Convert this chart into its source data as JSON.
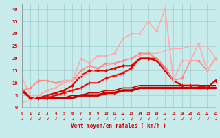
{
  "xlabel": "Vent moyen/en rafales ( km/h )",
  "x": [
    0,
    1,
    2,
    3,
    4,
    5,
    6,
    7,
    8,
    9,
    10,
    11,
    12,
    13,
    14,
    15,
    16,
    17,
    18,
    19,
    20,
    21,
    22,
    23
  ],
  "ylim": [
    0,
    42
  ],
  "xlim": [
    0,
    23
  ],
  "yticks": [
    0,
    5,
    10,
    15,
    20,
    25,
    30,
    35,
    40
  ],
  "bg_color": "#c8ecec",
  "lines": [
    {
      "y": [
        7,
        4,
        4,
        4,
        4,
        4,
        4,
        5,
        5,
        5,
        6,
        6,
        7,
        7,
        8,
        8,
        8,
        8,
        8,
        8,
        8,
        8,
        8,
        8
      ],
      "color": "#cc0000",
      "lw": 2.5,
      "marker": "s",
      "ms": 1.5
    },
    {
      "y": [
        7,
        4,
        4,
        4,
        4,
        4,
        5,
        5,
        6,
        6,
        7,
        7,
        8,
        8,
        9,
        9,
        9,
        9,
        9,
        9,
        9,
        9,
        9,
        9
      ],
      "color": "#bb0000",
      "lw": 1.2,
      "marker": null,
      "ms": 0
    },
    {
      "y": [
        7,
        4,
        4,
        4,
        5,
        6,
        7,
        8,
        10,
        10,
        12,
        13,
        14,
        16,
        20,
        20,
        20,
        16,
        11,
        9,
        9,
        9,
        8,
        11
      ],
      "color": "#ff0000",
      "lw": 1.5,
      "marker": "+",
      "ms": 4
    },
    {
      "y": [
        7,
        4,
        4,
        5,
        6,
        7,
        9,
        13,
        15,
        15,
        15,
        16,
        17,
        17,
        20,
        20,
        19,
        15,
        11,
        9,
        9,
        9,
        8,
        11
      ],
      "color": "#dd0000",
      "lw": 1.5,
      "marker": "D",
      "ms": 2.0
    },
    {
      "y": [
        2,
        3,
        5,
        7,
        8,
        10,
        11,
        13,
        14,
        16,
        17,
        18,
        19,
        20,
        21,
        22,
        22,
        23,
        24,
        24,
        25,
        25,
        25,
        20
      ],
      "color": "#ffaaaa",
      "lw": 1.0,
      "marker": null,
      "ms": 0
    },
    {
      "y": [
        7,
        8,
        11,
        11,
        10,
        11,
        11,
        15,
        17,
        16,
        18,
        18,
        19,
        20,
        22,
        22,
        20,
        16,
        11,
        12,
        19,
        19,
        15,
        20
      ],
      "color": "#ff8888",
      "lw": 1.2,
      "marker": "D",
      "ms": 2.0
    },
    {
      "y": [
        12,
        5,
        5,
        7,
        8,
        11,
        11,
        20,
        18,
        21,
        21,
        22,
        28,
        30,
        30,
        35,
        31,
        40,
        11,
        19,
        19,
        26,
        15,
        20
      ],
      "color": "#ffaaaa",
      "lw": 1.2,
      "marker": "D",
      "ms": 2.0
    }
  ]
}
